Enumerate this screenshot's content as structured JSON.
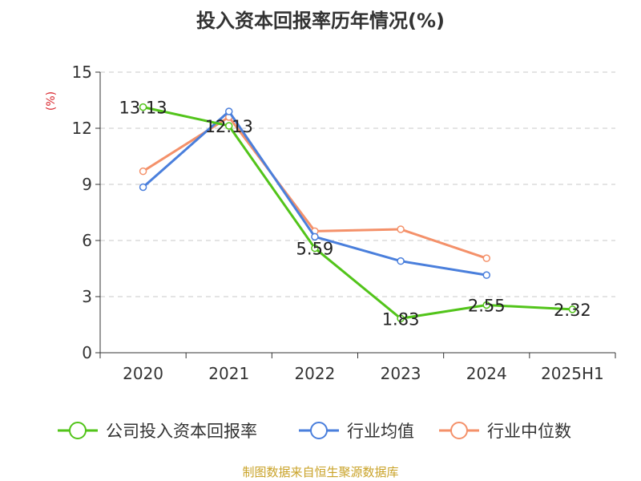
{
  "source_label": "制图数据来自恒生聚源数据库",
  "colors": {
    "company": "#52c41a",
    "industry_avg": "#4a7fdc",
    "industry_median": "#f4916a",
    "unit": "#d9272e",
    "source": "#c9a227",
    "grid": "#c8c8c8",
    "axis": "#333333"
  },
  "chart_data": {
    "type": "line",
    "title": "投入资本回报率历年情况(%)",
    "ylabel": "(%)",
    "categories": [
      "2020",
      "2021",
      "2022",
      "2023",
      "2024",
      "2025H1"
    ],
    "ylim": [
      0,
      15
    ],
    "yticks": [
      0,
      3,
      6,
      9,
      12,
      15
    ],
    "grid": true,
    "legend_position": "bottom",
    "series": [
      {
        "name": "公司投入资本回报率",
        "values": [
          13.13,
          12.13,
          5.59,
          1.83,
          2.55,
          2.32
        ],
        "labels": [
          "13.13",
          "12.13",
          "5.59",
          "1.83",
          "2.55",
          "2.32"
        ]
      },
      {
        "name": "行业均值",
        "values": [
          8.85,
          12.9,
          6.2,
          4.9,
          4.15,
          null
        ]
      },
      {
        "name": "行业中位数",
        "values": [
          9.7,
          12.6,
          6.5,
          6.6,
          5.05,
          null
        ]
      }
    ]
  }
}
